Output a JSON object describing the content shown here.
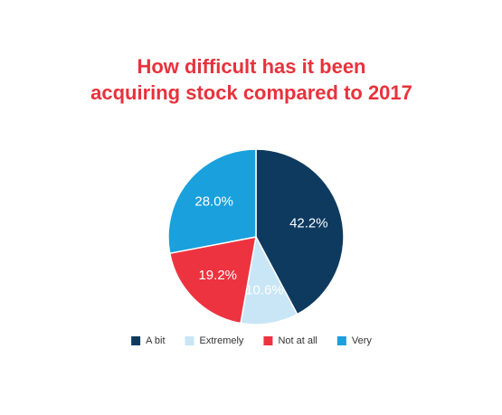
{
  "chart_data": {
    "type": "pie",
    "title": [
      "How difficult has it been",
      "acquiring stock compared to 2017"
    ],
    "categories": [
      "A bit",
      "Extremely",
      "Not at all",
      "Very"
    ],
    "values": [
      42.2,
      10.6,
      19.2,
      28.0
    ],
    "value_labels": [
      "42.2%",
      "10.6%",
      "19.2%",
      "28.0%"
    ],
    "colors": [
      "#0e3a5f",
      "#c8e6f6",
      "#ee3340",
      "#1aa0dc"
    ],
    "legend": "bottom"
  }
}
